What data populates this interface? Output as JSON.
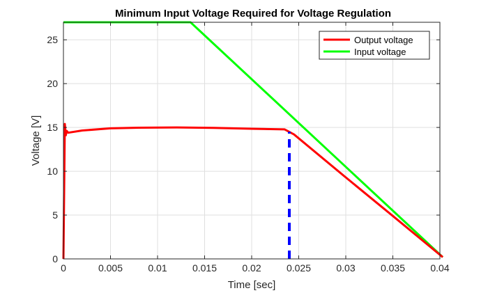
{
  "chart_data": {
    "type": "line",
    "title": "Minimum Input Voltage Required for Voltage Regulation",
    "xlabel": "Time [sec]",
    "ylabel": "Voltage [V]",
    "xlim": [
      0,
      0.04
    ],
    "ylim": [
      0,
      27
    ],
    "xticks": [
      0,
      0.005,
      0.01,
      0.015,
      0.02,
      0.025,
      0.03,
      0.035,
      0.04
    ],
    "xtick_labels": [
      "0",
      "0.005",
      "0.01",
      "0.015",
      "0.02",
      "0.025",
      "0.03",
      "0.035",
      "0.04"
    ],
    "yticks": [
      0,
      5,
      10,
      15,
      20,
      25
    ],
    "ytick_labels": [
      "0",
      "5",
      "10",
      "15",
      "20",
      "25"
    ],
    "grid": true,
    "legend_position": "top-right",
    "series": [
      {
        "name": "Output voltage",
        "color": "#ff0000",
        "x": [
          0,
          0.00015,
          0.00025,
          0.00035,
          0.0005,
          0.002,
          0.005,
          0.008,
          0.012,
          0.016,
          0.02,
          0.0235,
          0.0245,
          0.03,
          0.035,
          0.0403
        ],
        "y": [
          0,
          15.4,
          14.1,
          14.6,
          14.4,
          14.65,
          14.9,
          14.97,
          15.0,
          14.95,
          14.85,
          14.78,
          14.2,
          9.3,
          4.9,
          0.2
        ]
      },
      {
        "name": "Input voltage",
        "color": "#00ff00",
        "x": [
          0,
          0.0135,
          0.0403
        ],
        "y": [
          27,
          27,
          0.2
        ]
      }
    ],
    "annotations": [
      {
        "type": "vertical-dashed-line",
        "x": 0.024,
        "y_from": 0,
        "y_to": 14.5,
        "color": "#0000ff"
      }
    ]
  }
}
